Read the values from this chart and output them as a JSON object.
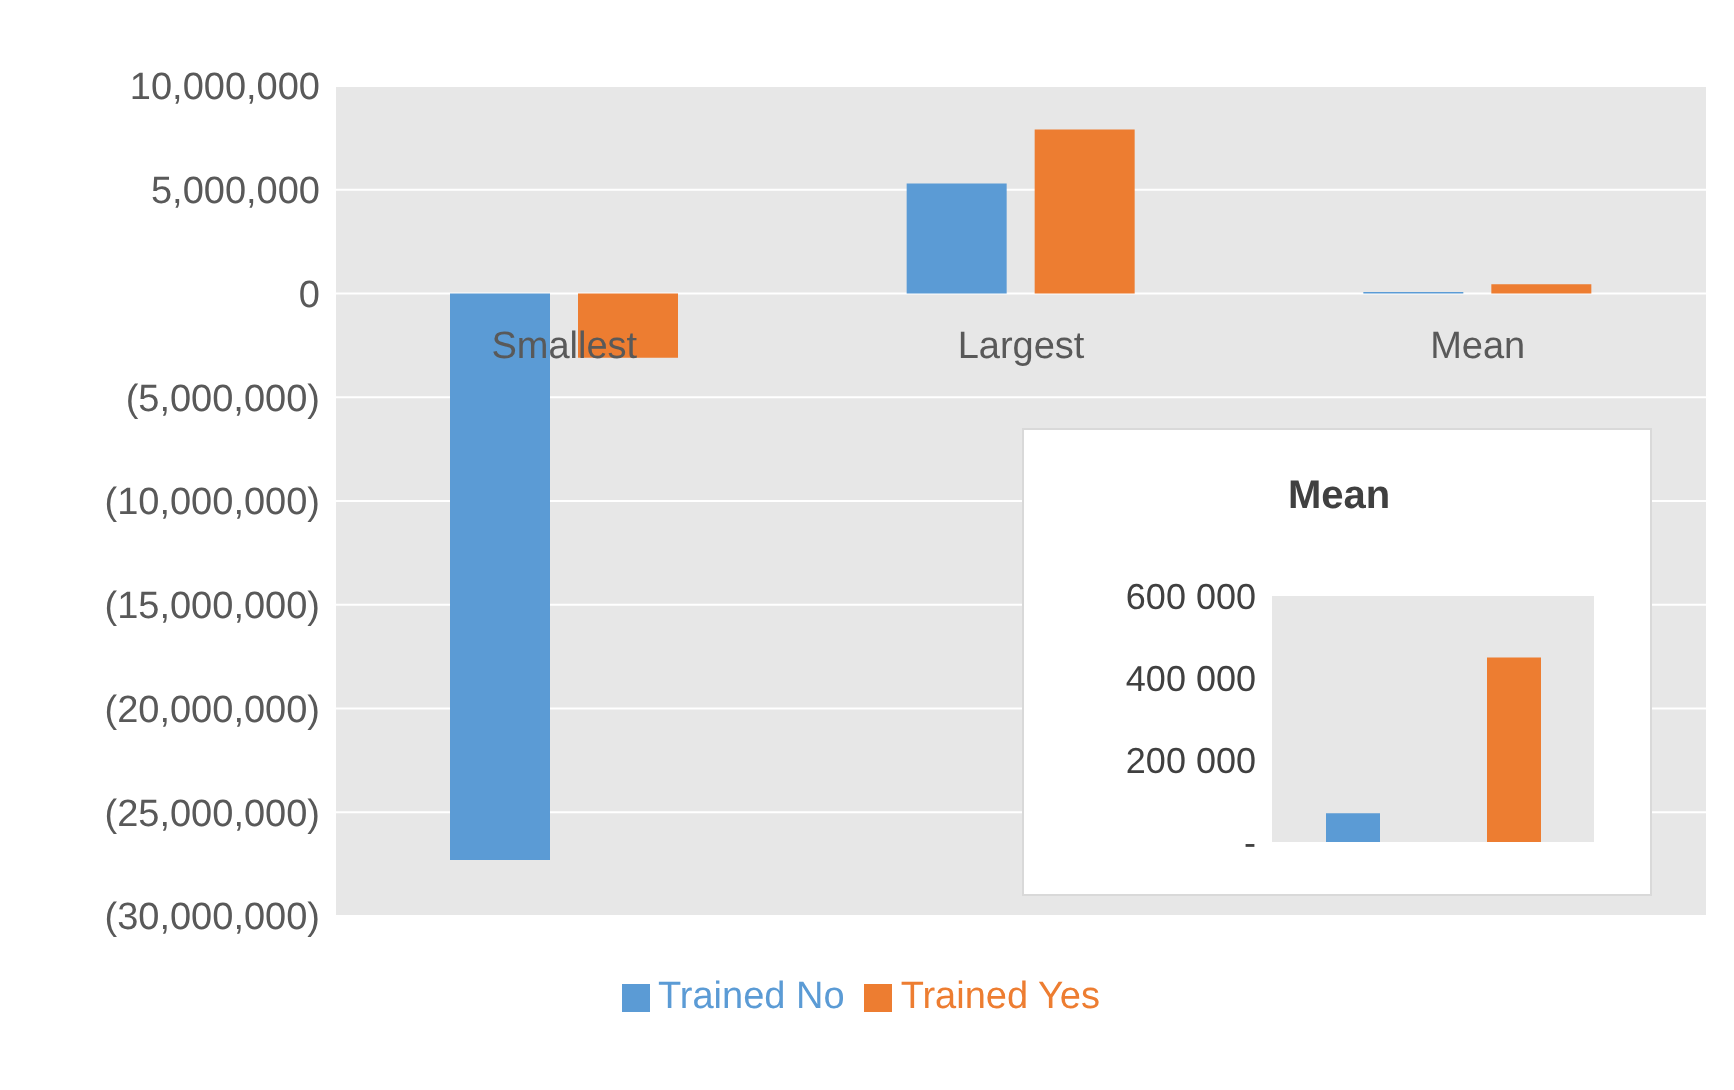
{
  "chart_data": [
    {
      "type": "bar",
      "categories": [
        "Smallest",
        "Largest",
        "Mean"
      ],
      "series": [
        {
          "name": "Trained No",
          "color": "#5b9bd5",
          "values": [
            -27300000,
            5300000,
            70000
          ]
        },
        {
          "name": "Trained Yes",
          "color": "#ed7d31",
          "values": [
            -3100000,
            7900000,
            450000
          ]
        }
      ],
      "ylim": [
        -30000000,
        10000000
      ],
      "yticks": [
        {
          "value": 10000000,
          "label": "10,000,000"
        },
        {
          "value": 5000000,
          "label": "5,000,000"
        },
        0,
        {
          "value": -5000000,
          "label": "(5,000,000)"
        },
        {
          "value": -10000000,
          "label": "(10,000,000)"
        },
        {
          "value": -15000000,
          "label": "(15,000,000)"
        },
        {
          "value": -20000000,
          "label": "(20,000,000)"
        },
        {
          "value": -25000000,
          "label": "(25,000,000)"
        },
        {
          "value": -30000000,
          "label": "(30,000,000)"
        }
      ],
      "grid": "y",
      "legend": "bottom"
    },
    {
      "type": "bar",
      "title": "Mean",
      "categories": [
        null,
        null
      ],
      "values": [
        70000,
        450000
      ],
      "colors": [
        "#5b9bd5",
        "#ed7d31"
      ],
      "ylim": [
        0,
        600000
      ],
      "yticks": [
        {
          "value": 0,
          "label": "-"
        },
        {
          "value": 200000,
          "label": "200 000"
        },
        {
          "value": 400000,
          "label": "400 000"
        },
        {
          "value": 600000,
          "label": "600 000"
        }
      ],
      "tick_labels": "y"
    }
  ]
}
